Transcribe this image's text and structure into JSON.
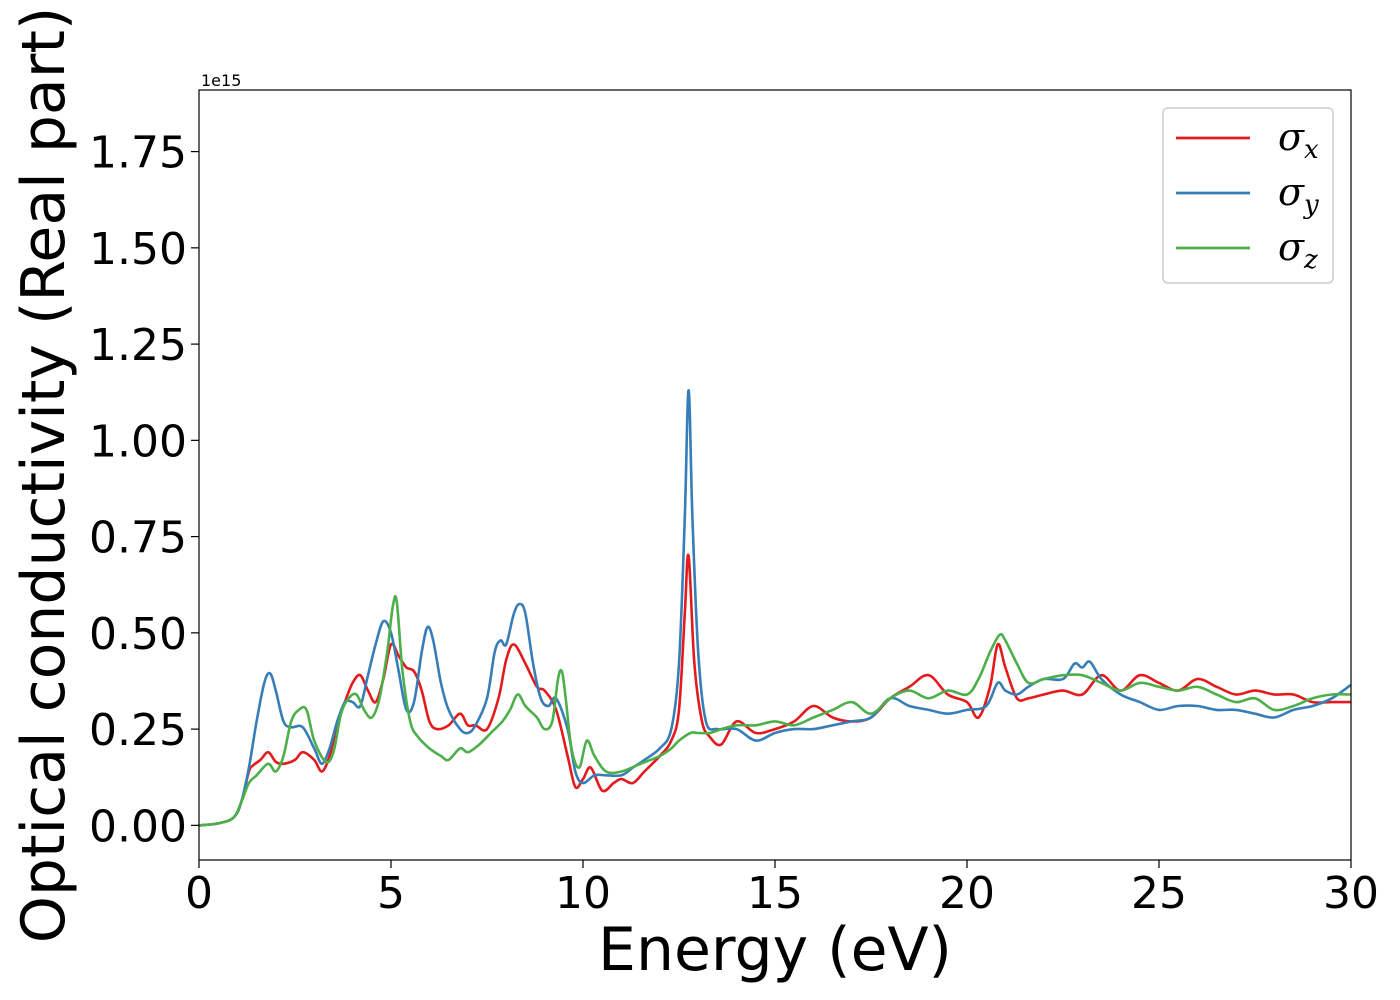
{
  "chart_data": {
    "type": "line",
    "title": "",
    "xlabel": "Energy (eV)",
    "ylabel": "Optical conductivity (Real part)",
    "y_offset_label": "1e15",
    "xlim": [
      0,
      30
    ],
    "ylim": [
      -0.09,
      1.91
    ],
    "xticks": [
      0,
      5,
      10,
      15,
      20,
      25,
      30
    ],
    "xtick_labels": [
      "0",
      "5",
      "10",
      "15",
      "20",
      "25",
      "30"
    ],
    "yticks": [
      0.0,
      0.25,
      0.5,
      0.75,
      1.0,
      1.25,
      1.5,
      1.75
    ],
    "ytick_labels": [
      "0.00",
      "0.25",
      "0.50",
      "0.75",
      "1.00",
      "1.25",
      "1.50",
      "1.75"
    ],
    "grid": false,
    "legend_position": "top-right",
    "series": [
      {
        "name": "σx",
        "legend_base": "σ",
        "legend_sub": "x",
        "color": "#e41a1c",
        "x": [
          0,
          0.5,
          0.9,
          1.1,
          1.3,
          1.4,
          1.6,
          1.8,
          2.0,
          2.2,
          2.5,
          2.7,
          3.0,
          3.2,
          3.4,
          3.6,
          3.8,
          4.0,
          4.2,
          4.4,
          4.6,
          4.8,
          5.0,
          5.2,
          5.4,
          5.6,
          5.8,
          6.0,
          6.2,
          6.5,
          6.8,
          7.0,
          7.2,
          7.5,
          7.8,
          8.0,
          8.2,
          8.5,
          8.8,
          9.0,
          9.3,
          9.6,
          9.8,
          10.0,
          10.2,
          10.5,
          10.8,
          11.0,
          11.3,
          11.6,
          12.0,
          12.3,
          12.5,
          12.65,
          12.75,
          12.9,
          13.1,
          13.3,
          13.6,
          14.0,
          14.5,
          15.0,
          15.5,
          16.0,
          16.5,
          17.0,
          17.5,
          18.0,
          18.5,
          19.0,
          19.5,
          20.0,
          20.3,
          20.6,
          20.8,
          21.0,
          21.3,
          21.6,
          22.0,
          22.5,
          23.0,
          23.5,
          24.0,
          24.5,
          25.0,
          25.5,
          26.0,
          26.5,
          27.0,
          27.5,
          28.0,
          28.5,
          29.0,
          29.5,
          30.0
        ],
        "y": [
          0.0,
          0.005,
          0.02,
          0.06,
          0.14,
          0.155,
          0.17,
          0.19,
          0.165,
          0.16,
          0.17,
          0.19,
          0.17,
          0.14,
          0.18,
          0.26,
          0.32,
          0.37,
          0.39,
          0.35,
          0.32,
          0.38,
          0.47,
          0.44,
          0.41,
          0.4,
          0.35,
          0.27,
          0.25,
          0.26,
          0.29,
          0.26,
          0.26,
          0.25,
          0.33,
          0.43,
          0.47,
          0.42,
          0.36,
          0.35,
          0.3,
          0.18,
          0.1,
          0.12,
          0.15,
          0.09,
          0.11,
          0.12,
          0.11,
          0.14,
          0.18,
          0.22,
          0.3,
          0.55,
          0.7,
          0.42,
          0.27,
          0.23,
          0.21,
          0.27,
          0.24,
          0.25,
          0.27,
          0.31,
          0.28,
          0.27,
          0.28,
          0.33,
          0.36,
          0.39,
          0.34,
          0.32,
          0.28,
          0.36,
          0.47,
          0.41,
          0.33,
          0.33,
          0.34,
          0.35,
          0.34,
          0.39,
          0.35,
          0.39,
          0.37,
          0.35,
          0.38,
          0.36,
          0.34,
          0.35,
          0.34,
          0.34,
          0.32,
          0.32,
          0.32
        ]
      },
      {
        "name": "σy",
        "legend_base": "σ",
        "legend_sub": "y",
        "color": "#377eb8",
        "x": [
          0,
          0.5,
          0.9,
          1.1,
          1.3,
          1.5,
          1.7,
          1.85,
          2.0,
          2.2,
          2.4,
          2.7,
          3.0,
          3.2,
          3.4,
          3.6,
          3.8,
          4.0,
          4.2,
          4.4,
          4.6,
          4.8,
          5.0,
          5.2,
          5.4,
          5.6,
          5.8,
          5.95,
          6.1,
          6.3,
          6.5,
          6.8,
          7.0,
          7.2,
          7.5,
          7.7,
          7.85,
          8.0,
          8.2,
          8.35,
          8.5,
          8.7,
          8.9,
          9.1,
          9.3,
          9.6,
          9.8,
          10.0,
          10.3,
          10.6,
          11.0,
          11.3,
          11.6,
          12.0,
          12.3,
          12.5,
          12.65,
          12.75,
          12.85,
          13.0,
          13.2,
          13.5,
          14.0,
          14.5,
          15.0,
          15.5,
          16.0,
          16.5,
          17.0,
          17.5,
          18.0,
          18.5,
          19.0,
          19.5,
          20.0,
          20.5,
          20.8,
          21.0,
          21.3,
          21.6,
          22.0,
          22.5,
          22.8,
          23.0,
          23.2,
          23.5,
          24.0,
          24.5,
          25.0,
          25.5,
          26.0,
          26.5,
          27.0,
          27.5,
          28.0,
          28.5,
          29.0,
          29.5,
          30.0
        ],
        "y": [
          0.0,
          0.005,
          0.02,
          0.06,
          0.15,
          0.27,
          0.37,
          0.395,
          0.35,
          0.27,
          0.255,
          0.255,
          0.2,
          0.16,
          0.2,
          0.27,
          0.32,
          0.32,
          0.31,
          0.39,
          0.47,
          0.53,
          0.5,
          0.4,
          0.3,
          0.32,
          0.45,
          0.515,
          0.48,
          0.37,
          0.3,
          0.25,
          0.24,
          0.26,
          0.33,
          0.45,
          0.48,
          0.47,
          0.55,
          0.575,
          0.55,
          0.42,
          0.33,
          0.31,
          0.33,
          0.25,
          0.14,
          0.11,
          0.13,
          0.13,
          0.13,
          0.15,
          0.17,
          0.2,
          0.25,
          0.42,
          0.8,
          1.13,
          0.8,
          0.45,
          0.27,
          0.25,
          0.25,
          0.22,
          0.24,
          0.25,
          0.25,
          0.26,
          0.27,
          0.28,
          0.33,
          0.31,
          0.3,
          0.29,
          0.3,
          0.31,
          0.37,
          0.35,
          0.34,
          0.36,
          0.38,
          0.38,
          0.42,
          0.41,
          0.425,
          0.38,
          0.34,
          0.32,
          0.3,
          0.31,
          0.31,
          0.3,
          0.3,
          0.29,
          0.28,
          0.3,
          0.31,
          0.33,
          0.365
        ]
      },
      {
        "name": "σz",
        "legend_base": "σ",
        "legend_sub": "z",
        "color": "#4daf4a",
        "x": [
          0,
          0.5,
          0.9,
          1.1,
          1.3,
          1.5,
          1.8,
          2.0,
          2.2,
          2.4,
          2.6,
          2.8,
          3.0,
          3.3,
          3.5,
          3.7,
          3.9,
          4.1,
          4.3,
          4.5,
          4.7,
          4.9,
          5.05,
          5.15,
          5.3,
          5.5,
          5.7,
          6.0,
          6.3,
          6.5,
          6.8,
          7.0,
          7.3,
          7.6,
          7.9,
          8.1,
          8.3,
          8.5,
          8.8,
          9.0,
          9.2,
          9.35,
          9.45,
          9.55,
          9.7,
          9.9,
          10.1,
          10.3,
          10.6,
          11.0,
          11.5,
          12.0,
          12.3,
          12.5,
          12.8,
          13.0,
          13.3,
          13.6,
          14.0,
          14.5,
          15.0,
          15.5,
          16.0,
          16.5,
          17.0,
          17.5,
          18.0,
          18.5,
          19.0,
          19.5,
          20.0,
          20.3,
          20.6,
          20.85,
          21.0,
          21.3,
          21.6,
          22.0,
          22.5,
          23.0,
          23.5,
          24.0,
          24.5,
          25.0,
          25.5,
          26.0,
          26.5,
          27.0,
          27.5,
          28.0,
          28.5,
          29.0,
          29.5,
          30.0
        ],
        "y": [
          0.0,
          0.005,
          0.02,
          0.06,
          0.11,
          0.13,
          0.16,
          0.14,
          0.18,
          0.27,
          0.3,
          0.3,
          0.22,
          0.165,
          0.19,
          0.29,
          0.33,
          0.34,
          0.3,
          0.28,
          0.33,
          0.45,
          0.57,
          0.58,
          0.4,
          0.27,
          0.23,
          0.2,
          0.18,
          0.17,
          0.2,
          0.19,
          0.21,
          0.24,
          0.27,
          0.3,
          0.34,
          0.31,
          0.28,
          0.25,
          0.27,
          0.38,
          0.4,
          0.33,
          0.2,
          0.15,
          0.22,
          0.18,
          0.14,
          0.14,
          0.16,
          0.18,
          0.2,
          0.22,
          0.24,
          0.24,
          0.24,
          0.25,
          0.26,
          0.26,
          0.27,
          0.26,
          0.28,
          0.3,
          0.32,
          0.29,
          0.33,
          0.35,
          0.33,
          0.35,
          0.34,
          0.38,
          0.45,
          0.495,
          0.48,
          0.42,
          0.37,
          0.38,
          0.39,
          0.39,
          0.37,
          0.35,
          0.37,
          0.36,
          0.35,
          0.36,
          0.34,
          0.32,
          0.33,
          0.3,
          0.31,
          0.33,
          0.34,
          0.34
        ]
      }
    ]
  }
}
